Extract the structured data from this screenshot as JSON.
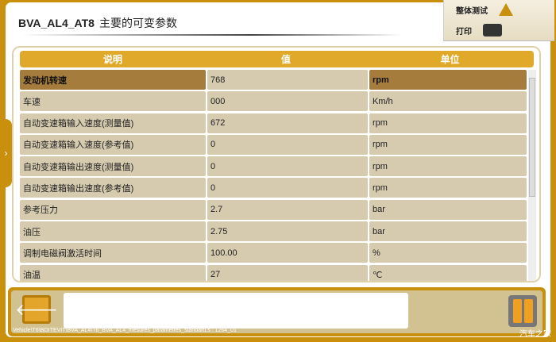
{
  "title": {
    "code": "BVA_AL4_AT8",
    "text": "主要的可变参数"
  },
  "top_tabs": [
    {
      "label": "整体测试",
      "icon": "warning-icon"
    },
    {
      "label": "打印",
      "icon": "printer-icon"
    }
  ],
  "table": {
    "headers": [
      "说明",
      "值",
      "单位"
    ],
    "rows": [
      {
        "desc": "发动机转速",
        "value": "768",
        "unit": "rpm",
        "selected": true
      },
      {
        "desc": "车速",
        "value": "000",
        "unit": "Km/h"
      },
      {
        "desc": "自动变速箱输入速度(测量值)",
        "value": "672",
        "unit": "rpm"
      },
      {
        "desc": "自动变速箱输入速度(参考值)",
        "value": "0",
        "unit": "rpm"
      },
      {
        "desc": "自动变速箱输出速度(测量值)",
        "value": "0",
        "unit": "rpm"
      },
      {
        "desc": "自动变速箱输出速度(参考值)",
        "value": "0",
        "unit": "rpm"
      },
      {
        "desc": "参考压力",
        "value": "2.7",
        "unit": "bar"
      },
      {
        "desc": "油压",
        "value": "2.75",
        "unit": "bar"
      },
      {
        "desc": "调制电磁阀激活时间",
        "value": "100.00",
        "unit": "%"
      },
      {
        "desc": "油温",
        "value": "27",
        "unit": "℃"
      }
    ]
  },
  "side_tab": "›",
  "footer": {
    "back": "🡐",
    "path": "Vehicle\\T6\\BOITEVIT\\BVA_AL4\\T6_BVA_AL4_mesures_parametres_standard.s : 1264_01",
    "watermark": "汽车之家"
  }
}
